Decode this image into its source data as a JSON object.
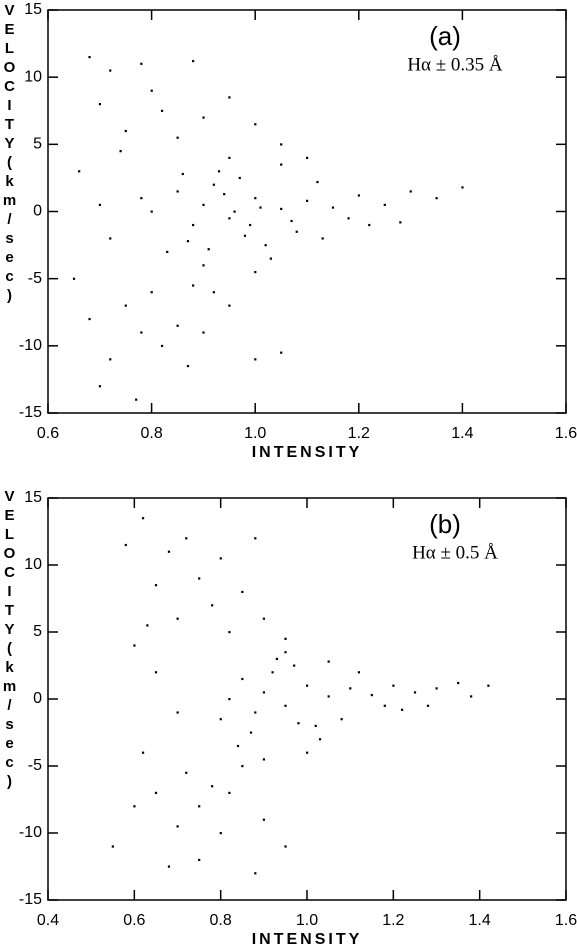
{
  "chart_data": [
    {
      "type": "scatter",
      "label": "(a)",
      "annotation": "Hα ± 0.35 Å",
      "xlabel": "INTENSITY",
      "ylabel": "VELOCITY(km/sec)",
      "color": "#000000",
      "xlim": [
        0.6,
        1.6
      ],
      "ylim": [
        -15,
        15
      ],
      "xticks": [
        0.6,
        0.8,
        {
          "value": 1,
          "label": "1.0"
        },
        1.2,
        1.4,
        1.6
      ],
      "yticks": [
        -15,
        -10,
        -5,
        0,
        5,
        10,
        15
      ],
      "x": [
        0.9,
        0.95,
        1.0,
        1.05,
        0.92,
        0.98,
        1.02,
        0.88,
        1.1,
        1.15,
        1.2,
        1.25,
        1.3,
        1.35,
        1.4,
        0.85,
        0.87,
        0.93,
        0.97,
        1.03,
        1.08,
        1.12,
        1.18,
        1.22,
        0.8,
        0.78,
        0.83,
        0.95,
        1.0,
        1.05,
        0.9,
        0.96,
        1.01,
        0.99,
        0.94,
        1.07,
        1.13,
        0.86,
        0.91,
        1.28,
        0.7,
        0.72,
        0.75,
        0.78,
        0.8,
        0.82,
        0.85,
        0.88,
        0.68,
        0.74,
        0.9,
        0.95,
        1.0,
        1.05,
        1.1,
        0.66,
        0.7,
        0.72,
        0.75,
        0.78,
        0.8,
        0.82,
        0.85,
        0.88,
        0.72,
        0.7,
        0.77,
        0.9,
        0.95,
        1.0,
        1.05,
        0.68,
        0.65,
        0.92,
        0.87
      ],
      "values": [
        0.5,
        -0.5,
        1.0,
        0.2,
        2.0,
        -1.8,
        -2.5,
        -1.0,
        0.8,
        0.3,
        1.2,
        0.5,
        1.5,
        1.0,
        1.8,
        1.5,
        -2.2,
        3.0,
        2.5,
        -3.5,
        -1.5,
        2.2,
        -0.5,
        -1.0,
        0.0,
        1.0,
        -3.0,
        4.0,
        -4.5,
        3.5,
        -4.0,
        0.0,
        0.3,
        -1.0,
        1.3,
        -0.7,
        -2.0,
        2.8,
        -2.8,
        -0.8,
        8.0,
        10.5,
        6.0,
        11.0,
        9.0,
        7.5,
        5.5,
        11.2,
        11.5,
        4.5,
        7.0,
        8.5,
        6.5,
        5.0,
        4.0,
        3.0,
        0.5,
        -2.0,
        -7.0,
        -9.0,
        -6.0,
        -10.0,
        -8.5,
        -5.5,
        -11.0,
        -13.0,
        -14.0,
        -9.0,
        -7.0,
        -11.0,
        -10.5,
        -8.0,
        -5.0,
        -6.0,
        -11.5
      ]
    },
    {
      "type": "scatter",
      "label": "(b)",
      "annotation": "Hα ± 0.5 Å",
      "xlabel": "INTENSITY",
      "ylabel": "VELOCITY(km/sec)",
      "color": "#000000",
      "xlim": [
        0.4,
        1.6
      ],
      "ylim": [
        -15,
        15
      ],
      "xticks": [
        0.4,
        0.6,
        0.8,
        {
          "value": 1,
          "label": "1.0"
        },
        1.2,
        1.4,
        1.6
      ],
      "yticks": [
        -15,
        -10,
        -5,
        0,
        5,
        10,
        15
      ],
      "x": [
        0.9,
        0.95,
        1.0,
        1.05,
        0.92,
        0.98,
        1.02,
        0.88,
        1.1,
        1.15,
        1.2,
        1.25,
        1.3,
        1.35,
        1.42,
        0.85,
        0.87,
        0.93,
        0.97,
        1.03,
        1.08,
        1.12,
        1.18,
        1.22,
        0.82,
        0.8,
        0.84,
        0.95,
        1.0,
        1.05,
        0.9,
        1.28,
        1.38,
        0.62,
        0.65,
        0.68,
        0.7,
        0.72,
        0.75,
        0.78,
        0.8,
        0.82,
        0.85,
        0.88,
        0.6,
        0.65,
        0.7,
        0.58,
        0.9,
        0.95,
        0.63,
        0.65,
        0.7,
        0.72,
        0.75,
        0.78,
        0.8,
        0.82,
        0.85,
        0.68,
        0.75,
        0.9,
        0.95,
        0.62,
        0.55,
        0.88,
        0.6
      ],
      "values": [
        0.5,
        -0.5,
        1.0,
        0.2,
        2.0,
        -1.8,
        -2.0,
        -1.0,
        0.8,
        0.3,
        1.0,
        0.5,
        0.8,
        1.2,
        1.0,
        1.5,
        -2.5,
        3.0,
        2.5,
        -3.0,
        -1.5,
        2.0,
        -0.5,
        -0.8,
        0.0,
        -1.5,
        -3.5,
        3.5,
        -4.0,
        2.8,
        -4.5,
        -0.5,
        0.2,
        13.5,
        8.5,
        11.0,
        6.0,
        12.0,
        9.0,
        7.0,
        10.5,
        5.0,
        8.0,
        12.0,
        4.0,
        2.0,
        -1.0,
        11.5,
        6.0,
        4.5,
        5.5,
        -7.0,
        -9.5,
        -5.5,
        -8.0,
        -6.5,
        -10.0,
        -7.0,
        -5.0,
        -12.5,
        -12.0,
        -9.0,
        -11.0,
        -4.0,
        -11.0,
        -13.0,
        -8.0
      ]
    }
  ]
}
